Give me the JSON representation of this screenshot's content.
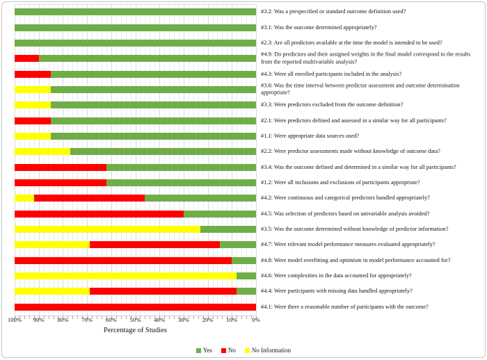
{
  "figure": {
    "background": "#FFFFFF",
    "border_color": "#C3C3C3"
  },
  "chart_data": {
    "type": "bar",
    "variant": "horizontal_stacked",
    "title": "",
    "xlabel": "Percentage of Studies",
    "x_ticks": [
      "100%",
      "90%",
      "80%",
      "70%",
      "60%",
      "50%",
      "40%",
      "30%",
      "20%",
      "10%",
      "0%"
    ],
    "x_axis": {
      "min": 0,
      "max": 100,
      "reversed": true,
      "minor_gridline_step": 2,
      "major_gridline_step": 10,
      "grid": true
    },
    "colors": {
      "yes": "#70AD47",
      "no": "#FF0000",
      "no_information": "#FFFF00"
    },
    "stack_order_left_to_right": [
      "no_information",
      "no",
      "yes"
    ],
    "legend": {
      "position": "bottom-center",
      "items": [
        {
          "key": "yes",
          "label": "Yes",
          "color": "#70AD47"
        },
        {
          "key": "no",
          "label": "No",
          "color": "#FF0000"
        },
        {
          "key": "no_information",
          "label": "No Information",
          "color": "#FFFF00"
        }
      ]
    },
    "rows": [
      {
        "label": "#3.2: Was a prespecified or standard outcome definition used?",
        "yes": 100,
        "no": 0,
        "no_information": 0
      },
      {
        "label": "#3.1: Was the outcome determined appropriately?",
        "yes": 100,
        "no": 0,
        "no_information": 0
      },
      {
        "label": "#2.3: Are all predictors available at the time the model is intended to be used?",
        "yes": 100,
        "no": 0,
        "no_information": 0
      },
      {
        "label": "#4.9: Do predictors and their assigned weights in the final model correspond to the results from the reported multivariable analysis?",
        "yes": 90,
        "no": 10,
        "no_information": 0
      },
      {
        "label": "#4.3: Were all enrolled participants included in the analysis?",
        "yes": 85,
        "no": 15,
        "no_information": 0
      },
      {
        "label": "#3.6: Was the time interval between predictor assessment and outcome determination appropriate?",
        "yes": 85,
        "no": 0,
        "no_information": 15
      },
      {
        "label": "#3.3: Were predictors excluded from the outcome definition?",
        "yes": 85,
        "no": 0,
        "no_information": 15
      },
      {
        "label": "#2.1: Were predictors defined and assessed in a similar way for all participants?",
        "yes": 85,
        "no": 15,
        "no_information": 0
      },
      {
        "label": "#1.1: Were appropriate data sources used?",
        "yes": 85,
        "no": 0,
        "no_information": 15
      },
      {
        "label": "#2.2: Were predictor assessments made without knowledge of outcome data?",
        "yes": 77,
        "no": 0,
        "no_information": 23
      },
      {
        "label": "#3.4: Was the outcome defined and determined in a similar way for all participants?",
        "yes": 62,
        "no": 38,
        "no_information": 0
      },
      {
        "label": "#1.2: Were all inclusions and exclusions of participants appropriate?",
        "yes": 62,
        "no": 38,
        "no_information": 0
      },
      {
        "label": "#4.2: Were continuous and categorical predictors handled appropriately?",
        "yes": 46,
        "no": 46,
        "no_information": 8
      },
      {
        "label": "#4.5: Was selection of predictors based on univariable analysis avoided?",
        "yes": 30,
        "no": 70,
        "no_information": 0
      },
      {
        "label": "#3.5: Was the outcome determined without knowledge of predictor information?",
        "yes": 23,
        "no": 0,
        "no_information": 77
      },
      {
        "label": "#4.7: Were relevant model performance measures evaluated appropriately?",
        "yes": 15,
        "no": 54,
        "no_information": 31
      },
      {
        "label": "#4.8: Were model overfitting and optimism in model performance accounted for?",
        "yes": 10,
        "no": 90,
        "no_information": 0
      },
      {
        "label": "#4.6: Were complexities in the data accounted for appropriately?",
        "yes": 8,
        "no": 0,
        "no_information": 92
      },
      {
        "label": "#4.4: Were participants with missing data handled appropriately?",
        "yes": 8,
        "no": 61,
        "no_information": 31
      },
      {
        "label": "#4.1: Were there a reasonable number of participants with the outcome?",
        "yes": 0,
        "no": 100,
        "no_information": 0
      }
    ]
  }
}
